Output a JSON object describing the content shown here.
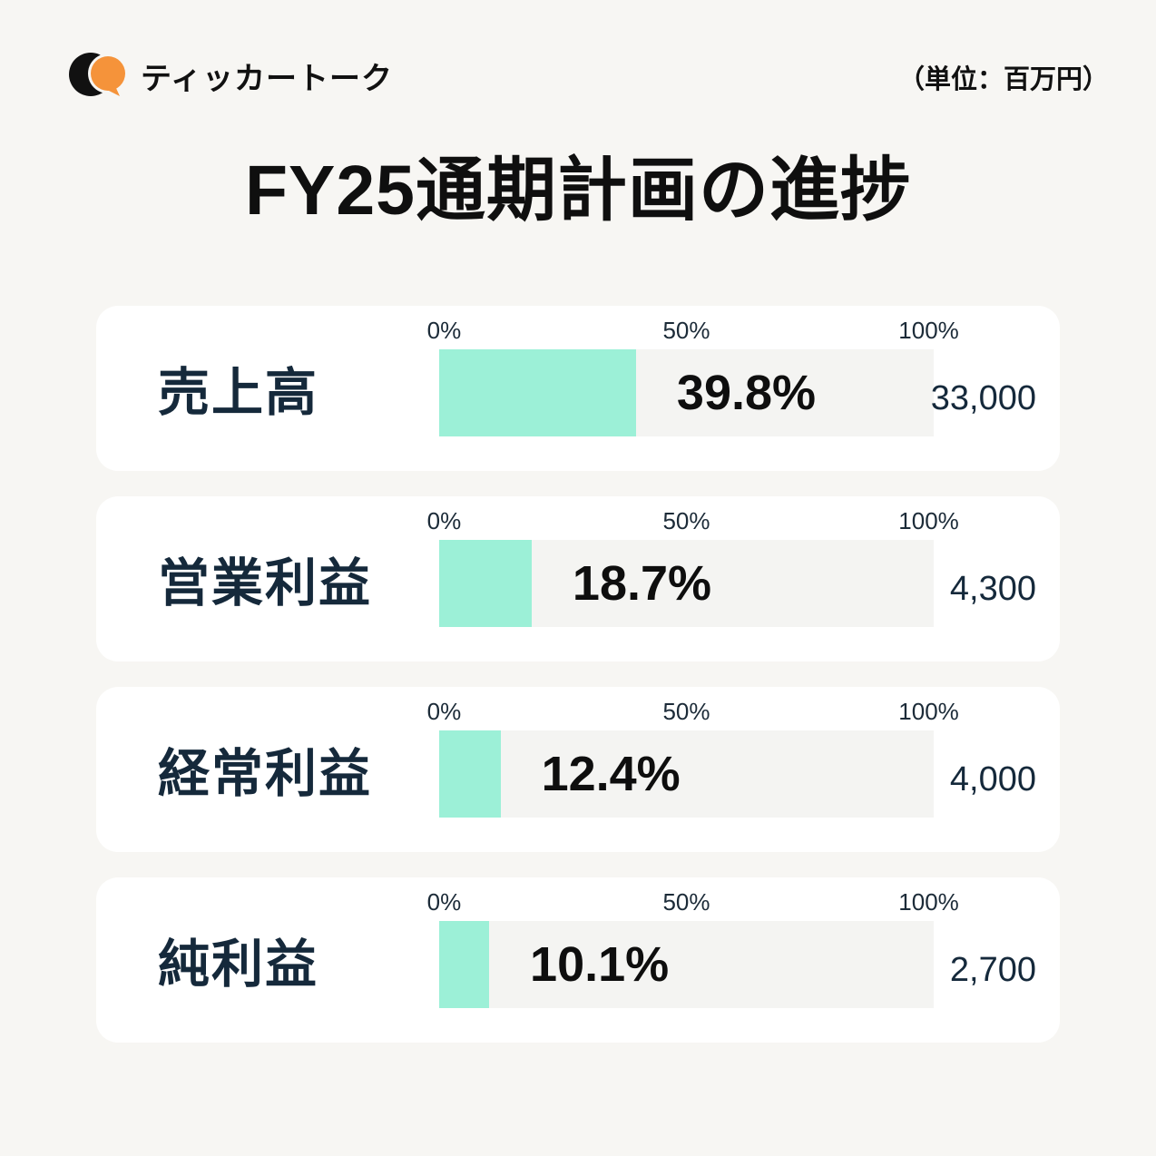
{
  "brand": {
    "name": "ティッカートーク",
    "logo_black": "#111111",
    "logo_orange": "#F5933A"
  },
  "unit_note": "（単位：百万円）",
  "title": "FY25通期計画の進捗",
  "chart_data": {
    "type": "bar",
    "orientation": "horizontal",
    "title": "FY25通期計画の進捗",
    "unit": "百万円",
    "categories": [
      "売上高",
      "営業利益",
      "経常利益",
      "純利益"
    ],
    "values_percent": [
      39.8,
      18.7,
      12.4,
      10.1
    ],
    "plan_values": [
      33000,
      4300,
      4000,
      2700
    ],
    "axis_ticks": [
      "0%",
      "50%",
      "100%"
    ],
    "xlim": [
      0,
      100
    ],
    "bar_color": "#9CF0D7",
    "track_color": "#F4F4F2",
    "grid": false,
    "legend": false
  },
  "rows": [
    {
      "label": "売上高",
      "percent": 39.8,
      "percent_label": "39.8%",
      "value_label": "33,000"
    },
    {
      "label": "営業利益",
      "percent": 18.7,
      "percent_label": "18.7%",
      "value_label": "4,300"
    },
    {
      "label": "経常利益",
      "percent": 12.4,
      "percent_label": "12.4%",
      "value_label": "4,000"
    },
    {
      "label": "純利益",
      "percent": 10.1,
      "percent_label": "10.1%",
      "value_label": "2,700"
    }
  ]
}
